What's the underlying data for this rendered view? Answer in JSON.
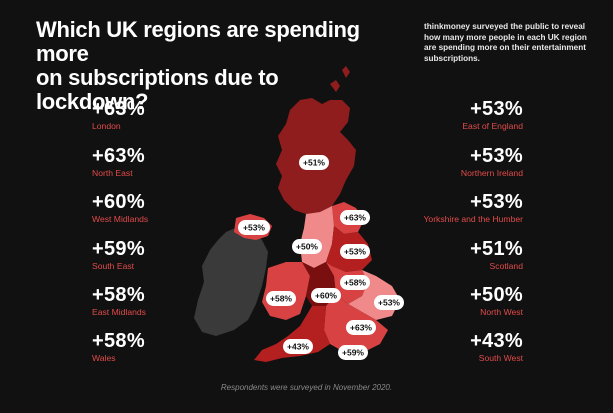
{
  "header": {
    "title_line1": "Which UK regions are spending more",
    "title_line2": "on subscriptions due to lockdown?",
    "intro": "thinkmoney surveyed the public to reveal how many more people in each UK region are spending more on their entertainment subscriptions."
  },
  "left_stats": [
    {
      "value": "+63%",
      "label": "London"
    },
    {
      "value": "+63%",
      "label": "North East"
    },
    {
      "value": "+60%",
      "label": "West Midlands"
    },
    {
      "value": "+59%",
      "label": "South East"
    },
    {
      "value": "+58%",
      "label": "East Midlands"
    },
    {
      "value": "+58%",
      "label": "Wales"
    }
  ],
  "right_stats": [
    {
      "value": "+53%",
      "label": "East of England"
    },
    {
      "value": "+53%",
      "label": "Northern Ireland"
    },
    {
      "value": "+53%",
      "label": "Yorkshire and the Humber"
    },
    {
      "value": "+51%",
      "label": "Scotland"
    },
    {
      "value": "+50%",
      "label": "North West"
    },
    {
      "value": "+43%",
      "label": "South West"
    }
  ],
  "map_labels": {
    "scotland": "+51%",
    "northern_ireland": "+53%",
    "north_east": "+63%",
    "north_west": "+50%",
    "yorkshire": "+53%",
    "east_midlands": "+58%",
    "west_midlands": "+60%",
    "wales": "+58%",
    "east_of_england": "+53%",
    "london": "+63%",
    "south_west": "+43%",
    "south_east": "+59%"
  },
  "colors": {
    "background": "#111111",
    "accent": "#e24b4b",
    "scotland": "#8f1d1d",
    "ireland": "#3a3a3a",
    "england_light": "#f08a8a",
    "england_mid": "#d94242",
    "england_dark": "#b3201f",
    "england_deep": "#7a0f10"
  },
  "footer": {
    "note": "Respondents were surveyed in November 2020."
  }
}
